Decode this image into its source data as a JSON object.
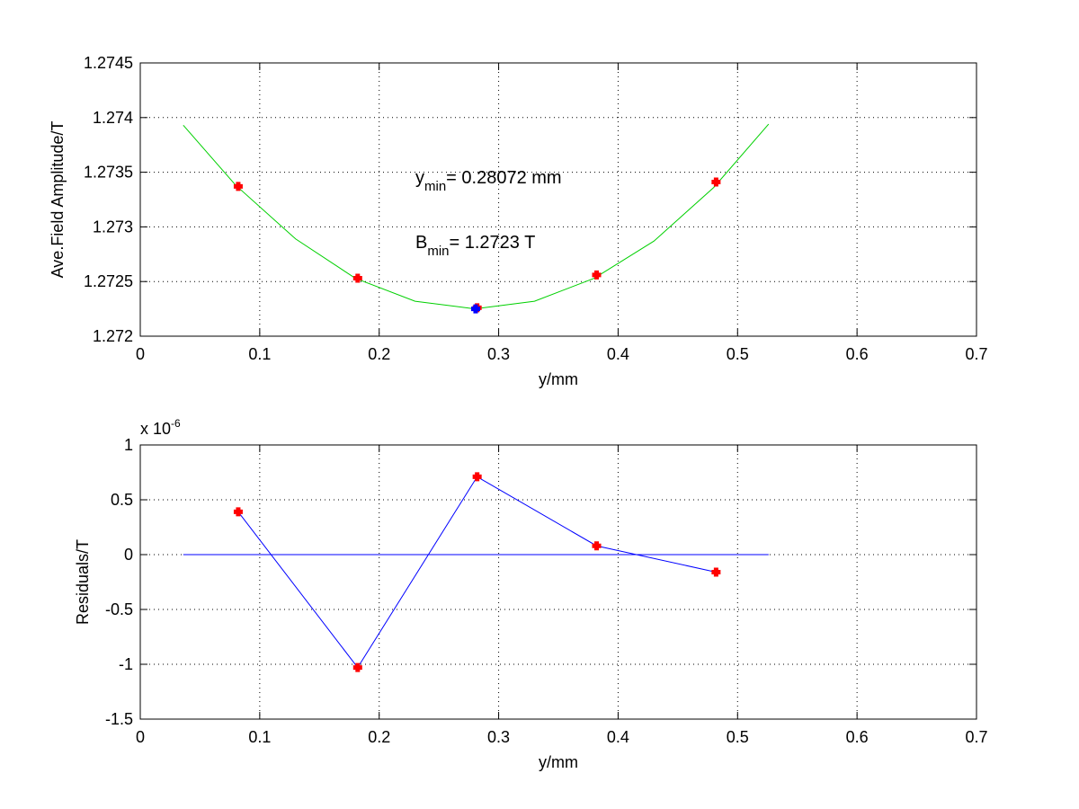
{
  "chart_data": [
    {
      "type": "line",
      "xlabel": "y/mm",
      "ylabel": "Ave.Field Amplitude/T",
      "xlim": [
        0,
        0.7
      ],
      "xticks": [
        0,
        0.1,
        0.2,
        0.3,
        0.4,
        0.5,
        0.6,
        0.7
      ],
      "ylim": [
        1.272,
        1.2745
      ],
      "yticks": [
        1.272,
        1.2725,
        1.273,
        1.2735,
        1.274,
        1.2745
      ],
      "grid": true,
      "annotations": [
        {
          "base": "y",
          "sub": "min",
          "text": "= 0.28072 mm"
        },
        {
          "base": "B",
          "sub": "min",
          "text": "= 1.2723 T"
        }
      ],
      "series": [
        {
          "color": "#00d000",
          "line": true,
          "marker": "none",
          "x": [
            0.036,
            0.08,
            0.13,
            0.18,
            0.23,
            0.28,
            0.33,
            0.38,
            0.43,
            0.48,
            0.526
          ],
          "values": [
            1.27393,
            1.27338,
            1.27289,
            1.27253,
            1.27232,
            1.27225,
            1.27232,
            1.27253,
            1.27287,
            1.27336,
            1.27394
          ]
        },
        {
          "color": "#ff0000",
          "line": false,
          "marker": "plus",
          "x": [
            0.082,
            0.182,
            0.282,
            0.382,
            0.482
          ],
          "values": [
            1.27337,
            1.27253,
            1.27226,
            1.27256,
            1.27341
          ]
        },
        {
          "color": "#0000ff",
          "line": false,
          "marker": "plus",
          "x": [
            0.28072
          ],
          "values": [
            1.27225
          ]
        }
      ]
    },
    {
      "type": "line",
      "xlabel": "y/mm",
      "ylabel": "Residuals/T",
      "exponent_label": {
        "base": "x 10",
        "exp": "-6"
      },
      "xlim": [
        0,
        0.7
      ],
      "xticks": [
        0,
        0.1,
        0.2,
        0.3,
        0.4,
        0.5,
        0.6,
        0.7
      ],
      "ylim": [
        -1.5,
        1
      ],
      "yticks": [
        -1.5,
        -1,
        -0.5,
        0,
        0.5,
        1
      ],
      "grid": true,
      "series": [
        {
          "color": "#0000ff",
          "line": true,
          "marker": "none",
          "x": [
            0.036,
            0.526
          ],
          "values": [
            0,
            0
          ]
        },
        {
          "color": "#0000ff",
          "marker_color": "#ff0000",
          "line": true,
          "marker": "plus",
          "x": [
            0.082,
            0.182,
            0.282,
            0.382,
            0.482
          ],
          "values": [
            0.39,
            -1.03,
            0.71,
            0.08,
            -0.16
          ]
        }
      ]
    }
  ]
}
